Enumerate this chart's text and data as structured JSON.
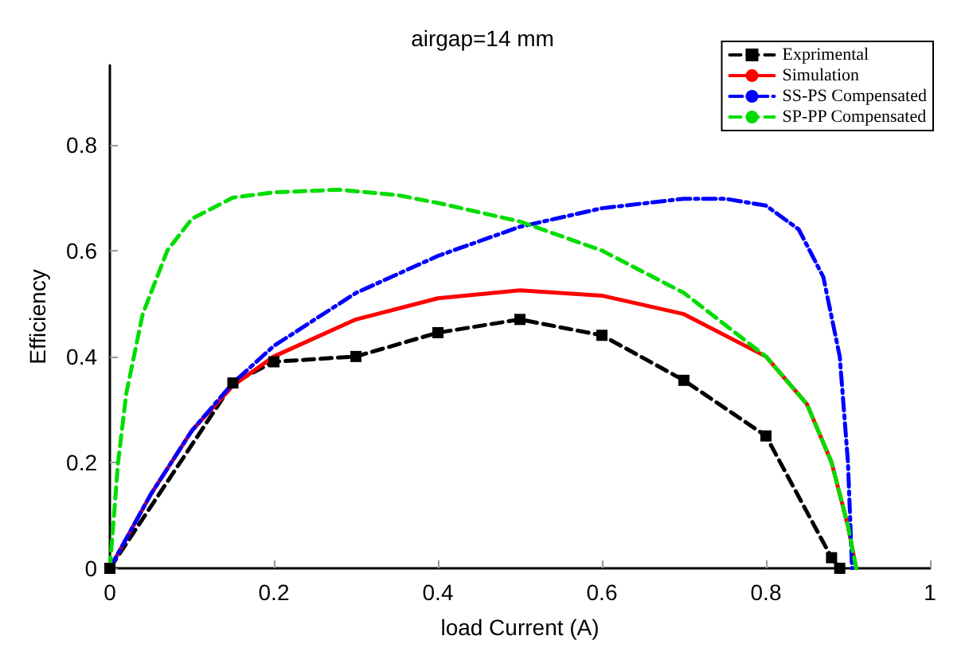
{
  "chart_data": {
    "type": "line",
    "title": "airgap=14 mm",
    "xlabel": "load Current (A)",
    "ylabel": "Efficiency",
    "xlim": [
      0,
      1
    ],
    "xticks": [
      0,
      0.2,
      0.4,
      0.6,
      0.8,
      1
    ],
    "ylim": [
      0,
      0.95
    ],
    "yticks": [
      0,
      0.2,
      0.4,
      0.6,
      0.8
    ],
    "grid": false,
    "legend": "top right",
    "series": [
      {
        "name": "Exprimental",
        "color": "#000000",
        "marker": "square",
        "line_style": "dashed",
        "x": [
          0,
          0.15,
          0.2,
          0.3,
          0.4,
          0.5,
          0.6,
          0.7,
          0.8,
          0.88,
          0.89
        ],
        "values": [
          0,
          0.35,
          0.39,
          0.4,
          0.445,
          0.47,
          0.44,
          0.355,
          0.25,
          0.02,
          0
        ]
      },
      {
        "name": "Simulation",
        "color": "#ff0000",
        "marker": "none",
        "line_style": "solid",
        "x": [
          0,
          0.05,
          0.1,
          0.15,
          0.2,
          0.3,
          0.4,
          0.5,
          0.6,
          0.7,
          0.8,
          0.85,
          0.88,
          0.9,
          0.91
        ],
        "values": [
          0,
          0.14,
          0.26,
          0.345,
          0.4,
          0.47,
          0.51,
          0.525,
          0.515,
          0.48,
          0.4,
          0.31,
          0.2,
          0.08,
          0
        ]
      },
      {
        "name": "SS-PS Compensated",
        "color": "#0000ff",
        "marker": "none",
        "line_style": "dashdot",
        "x": [
          0,
          0.05,
          0.1,
          0.15,
          0.2,
          0.3,
          0.4,
          0.5,
          0.6,
          0.7,
          0.75,
          0.8,
          0.84,
          0.87,
          0.89,
          0.9,
          0.905
        ],
        "values": [
          0,
          0.14,
          0.26,
          0.35,
          0.42,
          0.52,
          0.59,
          0.645,
          0.68,
          0.698,
          0.698,
          0.685,
          0.64,
          0.55,
          0.4,
          0.2,
          0
        ]
      },
      {
        "name": "SP-PP Compensated",
        "color": "#00dd00",
        "marker": "none",
        "line_style": "dashed",
        "x": [
          0,
          0.005,
          0.01,
          0.02,
          0.04,
          0.07,
          0.1,
          0.15,
          0.2,
          0.28,
          0.35,
          0.4,
          0.5,
          0.6,
          0.7,
          0.8,
          0.85,
          0.88,
          0.9,
          0.91
        ],
        "values": [
          0,
          0.1,
          0.2,
          0.33,
          0.48,
          0.6,
          0.66,
          0.7,
          0.71,
          0.715,
          0.705,
          0.69,
          0.655,
          0.6,
          0.52,
          0.4,
          0.31,
          0.2,
          0.08,
          0
        ]
      }
    ]
  }
}
